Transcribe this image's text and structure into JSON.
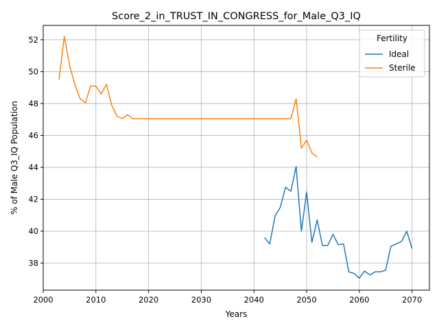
{
  "chart_data": {
    "type": "line",
    "title": "Score_2_in_TRUST_IN_CONGRESS_for_Male_Q3_IQ",
    "xlabel": "Years",
    "ylabel": "% of Male Q3_IQ Population",
    "xlim": [
      2000,
      2073.3
    ],
    "ylim": [
      36.3,
      52.9
    ],
    "xticks": [
      2000,
      2010,
      2020,
      2030,
      2040,
      2050,
      2060,
      2070
    ],
    "yticks": [
      38,
      40,
      42,
      44,
      46,
      48,
      50,
      52
    ],
    "grid": true,
    "legend": {
      "title": "Fertility",
      "position": "top-right"
    },
    "series": [
      {
        "name": "Ideal",
        "color": "#1f77b4",
        "x": [
          2042,
          2043,
          2044,
          2045,
          2046,
          2047,
          2048,
          2049,
          2050,
          2051,
          2052,
          2053,
          2054,
          2055,
          2056,
          2057,
          2058,
          2059,
          2060,
          2061,
          2062,
          2063,
          2064,
          2065,
          2066,
          2067,
          2068,
          2069,
          2070
        ],
        "y": [
          39.6,
          39.2,
          40.95,
          41.5,
          42.75,
          42.5,
          44.05,
          40.0,
          42.45,
          39.3,
          40.7,
          39.1,
          39.1,
          39.8,
          39.15,
          39.2,
          37.45,
          37.35,
          37.05,
          37.5,
          37.25,
          37.45,
          37.45,
          37.55,
          39.05,
          39.2,
          39.35,
          40.0,
          38.9
        ]
      },
      {
        "name": "Sterile",
        "color": "#ff7f0e",
        "x": [
          2003,
          2004,
          2005,
          2006,
          2007,
          2008,
          2009,
          2010,
          2011,
          2012,
          2013,
          2014,
          2015,
          2016,
          2017,
          2018,
          2019,
          2020,
          2021,
          2022,
          2023,
          2024,
          2025,
          2026,
          2027,
          2028,
          2029,
          2030,
          2031,
          2032,
          2033,
          2034,
          2035,
          2036,
          2037,
          2038,
          2039,
          2040,
          2041,
          2042,
          2043,
          2044,
          2045,
          2046,
          2047,
          2048,
          2049,
          2050,
          2051,
          2052
        ],
        "y": [
          49.5,
          52.2,
          50.4,
          49.2,
          48.3,
          48.05,
          49.1,
          49.1,
          48.6,
          49.2,
          47.9,
          47.2,
          47.05,
          47.3,
          47.05,
          47.05,
          47.05,
          47.05,
          47.05,
          47.05,
          47.05,
          47.05,
          47.05,
          47.05,
          47.05,
          47.05,
          47.05,
          47.05,
          47.05,
          47.05,
          47.05,
          47.05,
          47.05,
          47.05,
          47.05,
          47.05,
          47.05,
          47.05,
          47.05,
          47.05,
          47.05,
          47.05,
          47.05,
          47.05,
          47.05,
          48.3,
          45.2,
          45.7,
          44.9,
          44.65
        ]
      }
    ]
  }
}
